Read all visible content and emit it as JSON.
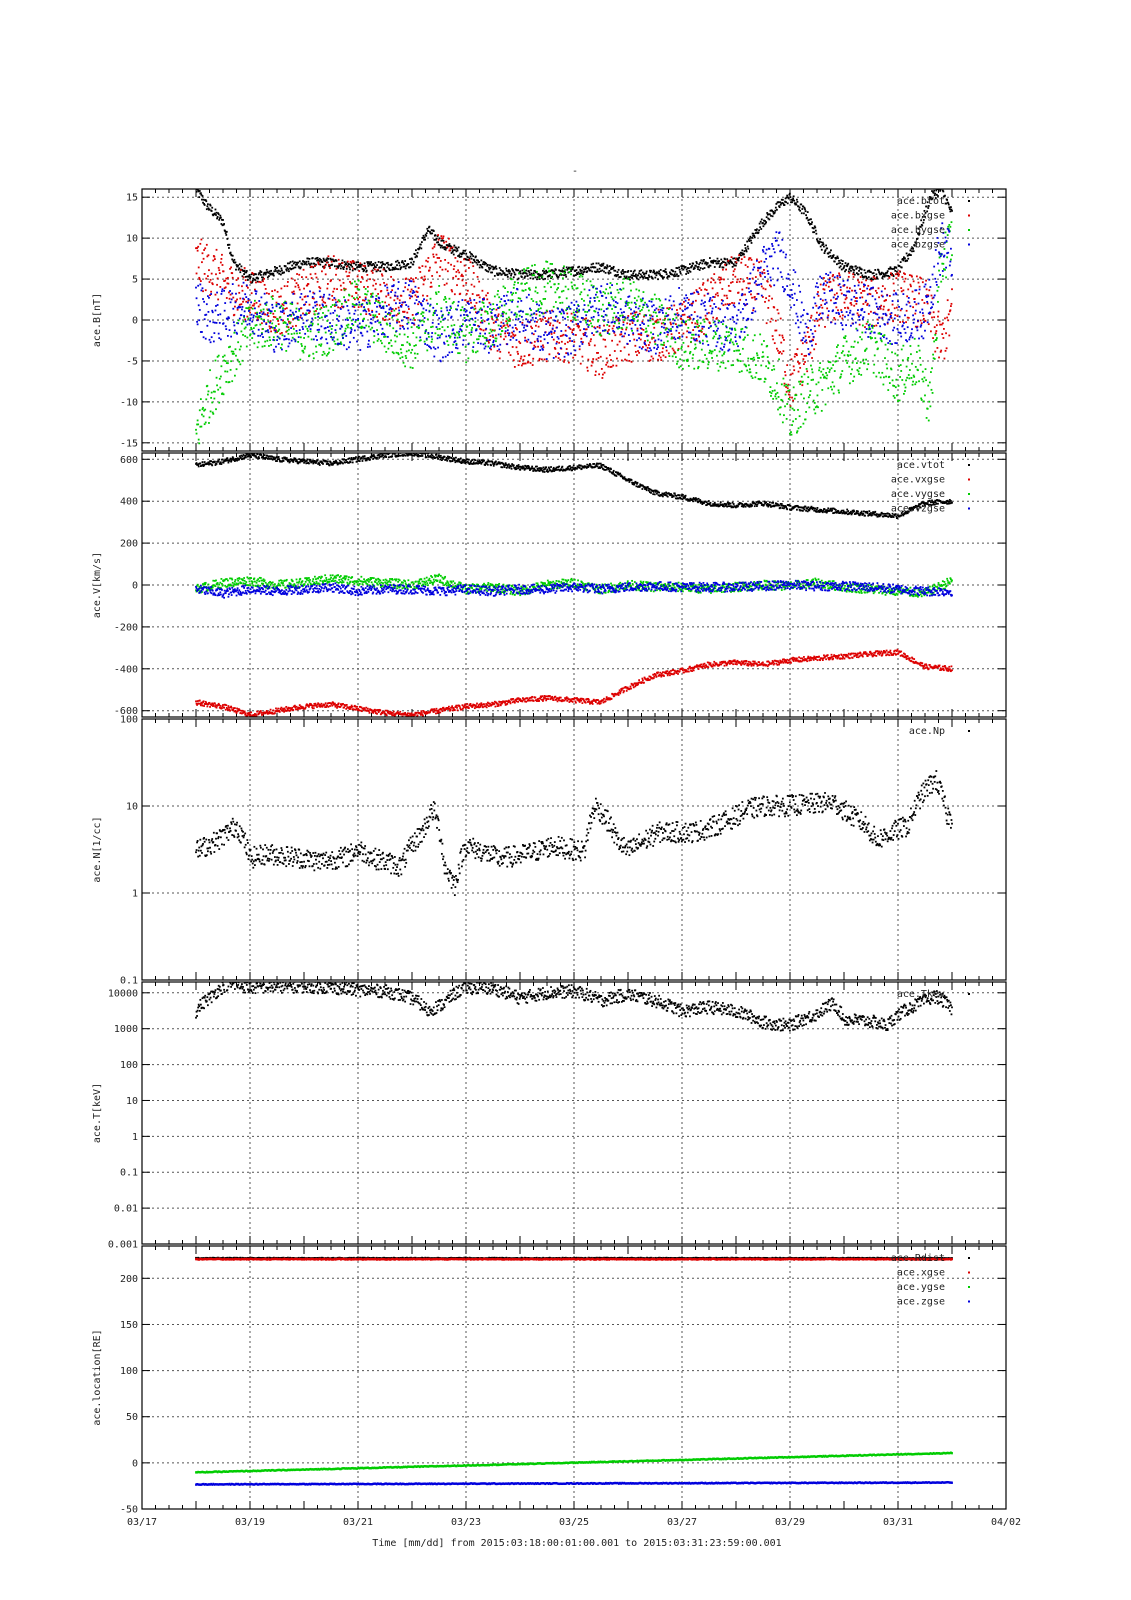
{
  "figure": {
    "title": "-",
    "footer_label": "Time [mm/dd]  from 2015:03:18:00:01:00.001  to  2015:03:31:23:59:00.001",
    "x_ticks": [
      "03/17",
      "03/19",
      "03/21",
      "03/23",
      "03/25",
      "03/27",
      "03/29",
      "03/31",
      "04/02"
    ]
  },
  "chart_data": [
    {
      "type": "scatter",
      "ylabel": "ace.B[nT]",
      "ylim": [
        -16,
        16
      ],
      "yscale": "linear",
      "yticks": [
        15,
        10,
        5,
        0,
        -5,
        -10,
        -15
      ],
      "ytick_labels": [
        "15",
        "10",
        "5",
        "0",
        "-5",
        "-10",
        "-15"
      ],
      "grid": true,
      "legend_position": "top-right",
      "series": [
        {
          "name": "ace.btot",
          "color": "#000000",
          "x": [
            18.0,
            18.2,
            18.5,
            18.7,
            19.0,
            19.5,
            20.0,
            20.5,
            21.0,
            21.5,
            22.0,
            22.3,
            22.6,
            23.0,
            23.5,
            24.0,
            24.5,
            25.0,
            25.5,
            26.0,
            26.5,
            27.0,
            27.5,
            28.0,
            28.5,
            28.8,
            29.0,
            29.3,
            29.6,
            30.0,
            30.5,
            31.0,
            31.3,
            31.6,
            31.8,
            32.0
          ],
          "values": [
            16,
            14,
            12,
            7,
            5,
            6,
            7,
            7,
            6.5,
            6.5,
            7,
            11,
            9,
            8,
            6,
            5.5,
            5.5,
            6,
            6.5,
            5.5,
            5.5,
            6,
            7,
            7,
            12,
            14,
            15,
            13,
            9,
            6.5,
            5.5,
            6,
            9,
            15,
            16,
            13
          ]
        },
        {
          "name": "ace.bxgse",
          "color": "#dd0000",
          "x": [
            18.0,
            18.3,
            18.6,
            19.0,
            19.5,
            20.0,
            20.5,
            21.0,
            21.5,
            22.0,
            22.5,
            23.0,
            23.5,
            24.0,
            24.5,
            25.0,
            25.5,
            26.0,
            26.5,
            27.0,
            27.5,
            28.0,
            28.5,
            28.8,
            29.0,
            29.3,
            29.6,
            30.0,
            30.5,
            31.0,
            31.5,
            31.8,
            32.0
          ],
          "values": [
            7,
            6,
            4,
            3,
            1,
            3,
            5,
            4,
            3,
            2,
            8,
            5,
            -1,
            -3,
            -2,
            -2,
            -4,
            -2,
            -2,
            -1,
            2,
            5,
            4,
            -2,
            -8,
            -4,
            2,
            3,
            2,
            3,
            2,
            -3,
            1
          ]
        },
        {
          "name": "ace.bygse",
          "color": "#00cc00",
          "x": [
            18.0,
            18.2,
            18.5,
            18.8,
            19.0,
            19.5,
            20.0,
            20.5,
            21.0,
            21.5,
            22.0,
            22.5,
            23.0,
            23.5,
            24.0,
            24.5,
            25.0,
            25.5,
            26.0,
            26.5,
            27.0,
            27.5,
            28.0,
            28.5,
            28.8,
            29.0,
            29.3,
            29.6,
            30.0,
            30.5,
            31.0,
            31.3,
            31.6,
            31.8,
            32.0
          ],
          "values": [
            -14,
            -10,
            -6,
            -3,
            -1,
            0,
            -2,
            -1,
            2,
            -1,
            -3,
            1,
            -2,
            0,
            3,
            4,
            3,
            1,
            2,
            0,
            -3,
            -3,
            -3,
            -5,
            -8,
            -12,
            -9,
            -8,
            -5,
            -3,
            -7,
            -5,
            -10,
            7,
            10
          ]
        },
        {
          "name": "ace.bzgse",
          "color": "#0000dd",
          "x": [
            18.0,
            18.3,
            18.6,
            19.0,
            19.5,
            20.0,
            20.5,
            21.0,
            21.5,
            22.0,
            22.5,
            23.0,
            23.5,
            24.0,
            24.5,
            25.0,
            25.5,
            26.0,
            26.5,
            27.0,
            27.5,
            28.0,
            28.5,
            28.8,
            29.0,
            29.3,
            29.6,
            30.0,
            30.5,
            31.0,
            31.5,
            31.8,
            32.0
          ],
          "values": [
            2,
            0,
            1,
            2,
            -1,
            1,
            0,
            -1,
            1,
            2,
            -2,
            0,
            -1,
            1,
            -2,
            -1,
            2,
            0,
            -1,
            1,
            0,
            -1,
            6,
            8,
            5,
            -2,
            3,
            2,
            1,
            0,
            1,
            9,
            8
          ]
        }
      ]
    },
    {
      "type": "scatter",
      "ylabel": "ace.V[km/s]",
      "ylim": [
        -630,
        630
      ],
      "yscale": "linear",
      "yticks": [
        600,
        400,
        200,
        0,
        -200,
        -400,
        -600
      ],
      "ytick_labels": [
        "600",
        "400",
        "200",
        "0",
        "-200",
        "-400",
        "-600"
      ],
      "grid": true,
      "legend_position": "top-right",
      "series": [
        {
          "name": "ace.vtot",
          "color": "#000000",
          "x": [
            18.0,
            18.5,
            19.0,
            19.5,
            20.0,
            20.5,
            21.0,
            21.5,
            22.0,
            22.5,
            23.0,
            23.5,
            24.0,
            24.5,
            25.0,
            25.5,
            26.0,
            26.5,
            27.0,
            27.5,
            28.0,
            28.5,
            29.0,
            29.5,
            30.0,
            30.5,
            31.0,
            31.5,
            32.0
          ],
          "values": [
            570,
            590,
            620,
            600,
            590,
            580,
            600,
            620,
            630,
            610,
            590,
            580,
            560,
            550,
            560,
            570,
            500,
            440,
            420,
            390,
            380,
            390,
            370,
            360,
            350,
            340,
            330,
            390,
            400
          ]
        },
        {
          "name": "ace.vxgse",
          "color": "#dd0000",
          "x": [
            18.0,
            18.5,
            19.0,
            19.5,
            20.0,
            20.5,
            21.0,
            21.5,
            22.0,
            22.5,
            23.0,
            23.5,
            24.0,
            24.5,
            25.0,
            25.5,
            26.0,
            26.5,
            27.0,
            27.5,
            28.0,
            28.5,
            29.0,
            29.5,
            30.0,
            30.5,
            31.0,
            31.5,
            32.0
          ],
          "values": [
            -560,
            -580,
            -620,
            -600,
            -580,
            -570,
            -590,
            -610,
            -620,
            -600,
            -580,
            -570,
            -550,
            -540,
            -550,
            -560,
            -490,
            -430,
            -410,
            -380,
            -370,
            -380,
            -360,
            -350,
            -340,
            -330,
            -320,
            -390,
            -400
          ]
        },
        {
          "name": "ace.vygse",
          "color": "#00cc00",
          "x": [
            18.0,
            18.5,
            19.0,
            19.5,
            20.0,
            20.5,
            21.0,
            21.5,
            22.0,
            22.5,
            23.0,
            23.5,
            24.0,
            24.5,
            25.0,
            25.5,
            26.0,
            26.5,
            27.0,
            27.5,
            28.0,
            28.5,
            29.0,
            29.5,
            30.0,
            30.5,
            31.0,
            31.5,
            32.0
          ],
          "values": [
            -20,
            10,
            20,
            0,
            10,
            30,
            20,
            10,
            0,
            30,
            -20,
            -10,
            -30,
            0,
            10,
            -20,
            0,
            -10,
            -10,
            -20,
            -10,
            0,
            -5,
            10,
            -10,
            -20,
            -30,
            -40,
            20
          ]
        },
        {
          "name": "ace.vzgse",
          "color": "#0000dd",
          "x": [
            18.0,
            18.5,
            19.0,
            19.5,
            20.0,
            20.5,
            21.0,
            21.5,
            22.0,
            22.5,
            23.0,
            23.5,
            24.0,
            24.5,
            25.0,
            25.5,
            26.0,
            26.5,
            27.0,
            27.5,
            28.0,
            28.5,
            29.0,
            29.5,
            30.0,
            30.5,
            31.0,
            31.5,
            32.0
          ],
          "values": [
            -20,
            -40,
            -20,
            -30,
            -20,
            -10,
            -30,
            -20,
            -20,
            -30,
            -20,
            -30,
            -20,
            -20,
            -10,
            -20,
            -10,
            -5,
            -10,
            -10,
            -10,
            -5,
            0,
            -5,
            -5,
            -10,
            -20,
            -30,
            -30
          ]
        }
      ]
    },
    {
      "type": "scatter",
      "ylabel": "ace.N[1/cc]",
      "ylim": [
        0.1,
        100
      ],
      "yscale": "log",
      "yticks": [
        100,
        10,
        1,
        0.1
      ],
      "ytick_labels": [
        "100",
        "10",
        "1",
        "0.1"
      ],
      "grid": true,
      "legend_position": "top-right",
      "series": [
        {
          "name": "ace.Np",
          "color": "#000000",
          "x": [
            18.0,
            18.2,
            18.4,
            18.6,
            18.75,
            19.0,
            19.3,
            19.6,
            20.0,
            20.3,
            20.6,
            20.8,
            21.0,
            21.3,
            21.6,
            21.8,
            22.2,
            22.4,
            22.6,
            22.8,
            23.0,
            23.3,
            23.6,
            24.0,
            24.3,
            24.6,
            24.9,
            25.2,
            25.4,
            25.6,
            25.8,
            26.0,
            26.3,
            26.6,
            26.9,
            27.2,
            27.5,
            27.9,
            28.2,
            28.5,
            28.9,
            29.8,
            30.1,
            30.4,
            30.6,
            31.2,
            31.5,
            31.7,
            31.9,
            32.0
          ],
          "values": [
            3,
            3.5,
            4,
            5,
            6,
            2.5,
            2.8,
            2.7,
            2.5,
            2.3,
            2.5,
            2.6,
            3.2,
            2.5,
            2.2,
            2,
            5,
            9,
            2,
            1.2,
            3.5,
            3,
            2.5,
            2.7,
            3,
            3.5,
            3.2,
            3,
            10,
            7,
            4,
            3,
            4,
            5,
            5,
            5,
            5.5,
            7,
            9,
            10,
            10,
            11,
            8,
            6,
            4,
            6,
            15,
            20,
            8,
            7
          ]
        }
      ]
    },
    {
      "type": "scatter",
      "ylabel": "ace.T[keV]",
      "ylim": [
        0.001,
        20000
      ],
      "yscale": "log",
      "yticks": [
        10000,
        1000,
        100,
        10,
        1,
        0.1,
        0.01
      ],
      "ytick_labels": [
        "10000",
        "1000",
        "100",
        "10",
        "1",
        "0.1",
        "0.01"
      ],
      "bottom_label": "0.001",
      "grid": true,
      "legend_position": "top-right",
      "series": [
        {
          "name": "ace.Tkev",
          "color": "#000000",
          "x": [
            18.0,
            18.3,
            18.6,
            19.0,
            19.5,
            20.0,
            20.5,
            21.0,
            21.5,
            22.0,
            22.3,
            22.6,
            23.0,
            23.5,
            24.0,
            24.5,
            25.0,
            25.5,
            26.0,
            26.5,
            27.0,
            27.5,
            28.0,
            28.5,
            29.0,
            29.5,
            29.8,
            30.0,
            30.5,
            30.8,
            31.1,
            31.4,
            31.7,
            32.0
          ],
          "values": [
            3000,
            8000,
            18000,
            14000,
            15000,
            15000,
            14000,
            12000,
            11000,
            7000,
            3000,
            5000,
            14000,
            13000,
            7000,
            10000,
            11000,
            6000,
            9000,
            6000,
            3000,
            4000,
            3000,
            1500,
            1200,
            2500,
            5000,
            1800,
            1600,
            1200,
            3000,
            5000,
            8000,
            3500
          ]
        }
      ]
    },
    {
      "type": "scatter",
      "ylabel": "ace.location[RE]",
      "ylim": [
        -50,
        235
      ],
      "yscale": "linear",
      "yticks": [
        200,
        150,
        100,
        50,
        0,
        -50
      ],
      "ytick_labels": [
        "200",
        "150",
        "100",
        "50",
        "0",
        "-50"
      ],
      "grid": true,
      "legend_position": "top-right",
      "series": [
        {
          "name": "ace.Rdist",
          "color": "#000000",
          "x": [
            18.0,
            32.0
          ],
          "values": [
            222,
            222
          ]
        },
        {
          "name": "ace.xgse",
          "color": "#dd0000",
          "x": [
            18.0,
            32.0
          ],
          "values": [
            221,
            221
          ]
        },
        {
          "name": "ace.ygse",
          "color": "#00cc00",
          "x": [
            18.0,
            32.0
          ],
          "values": [
            -10,
            11
          ]
        },
        {
          "name": "ace.zgse",
          "color": "#0000dd",
          "x": [
            18.0,
            32.0
          ],
          "values": [
            -23,
            -21
          ]
        }
      ]
    }
  ]
}
